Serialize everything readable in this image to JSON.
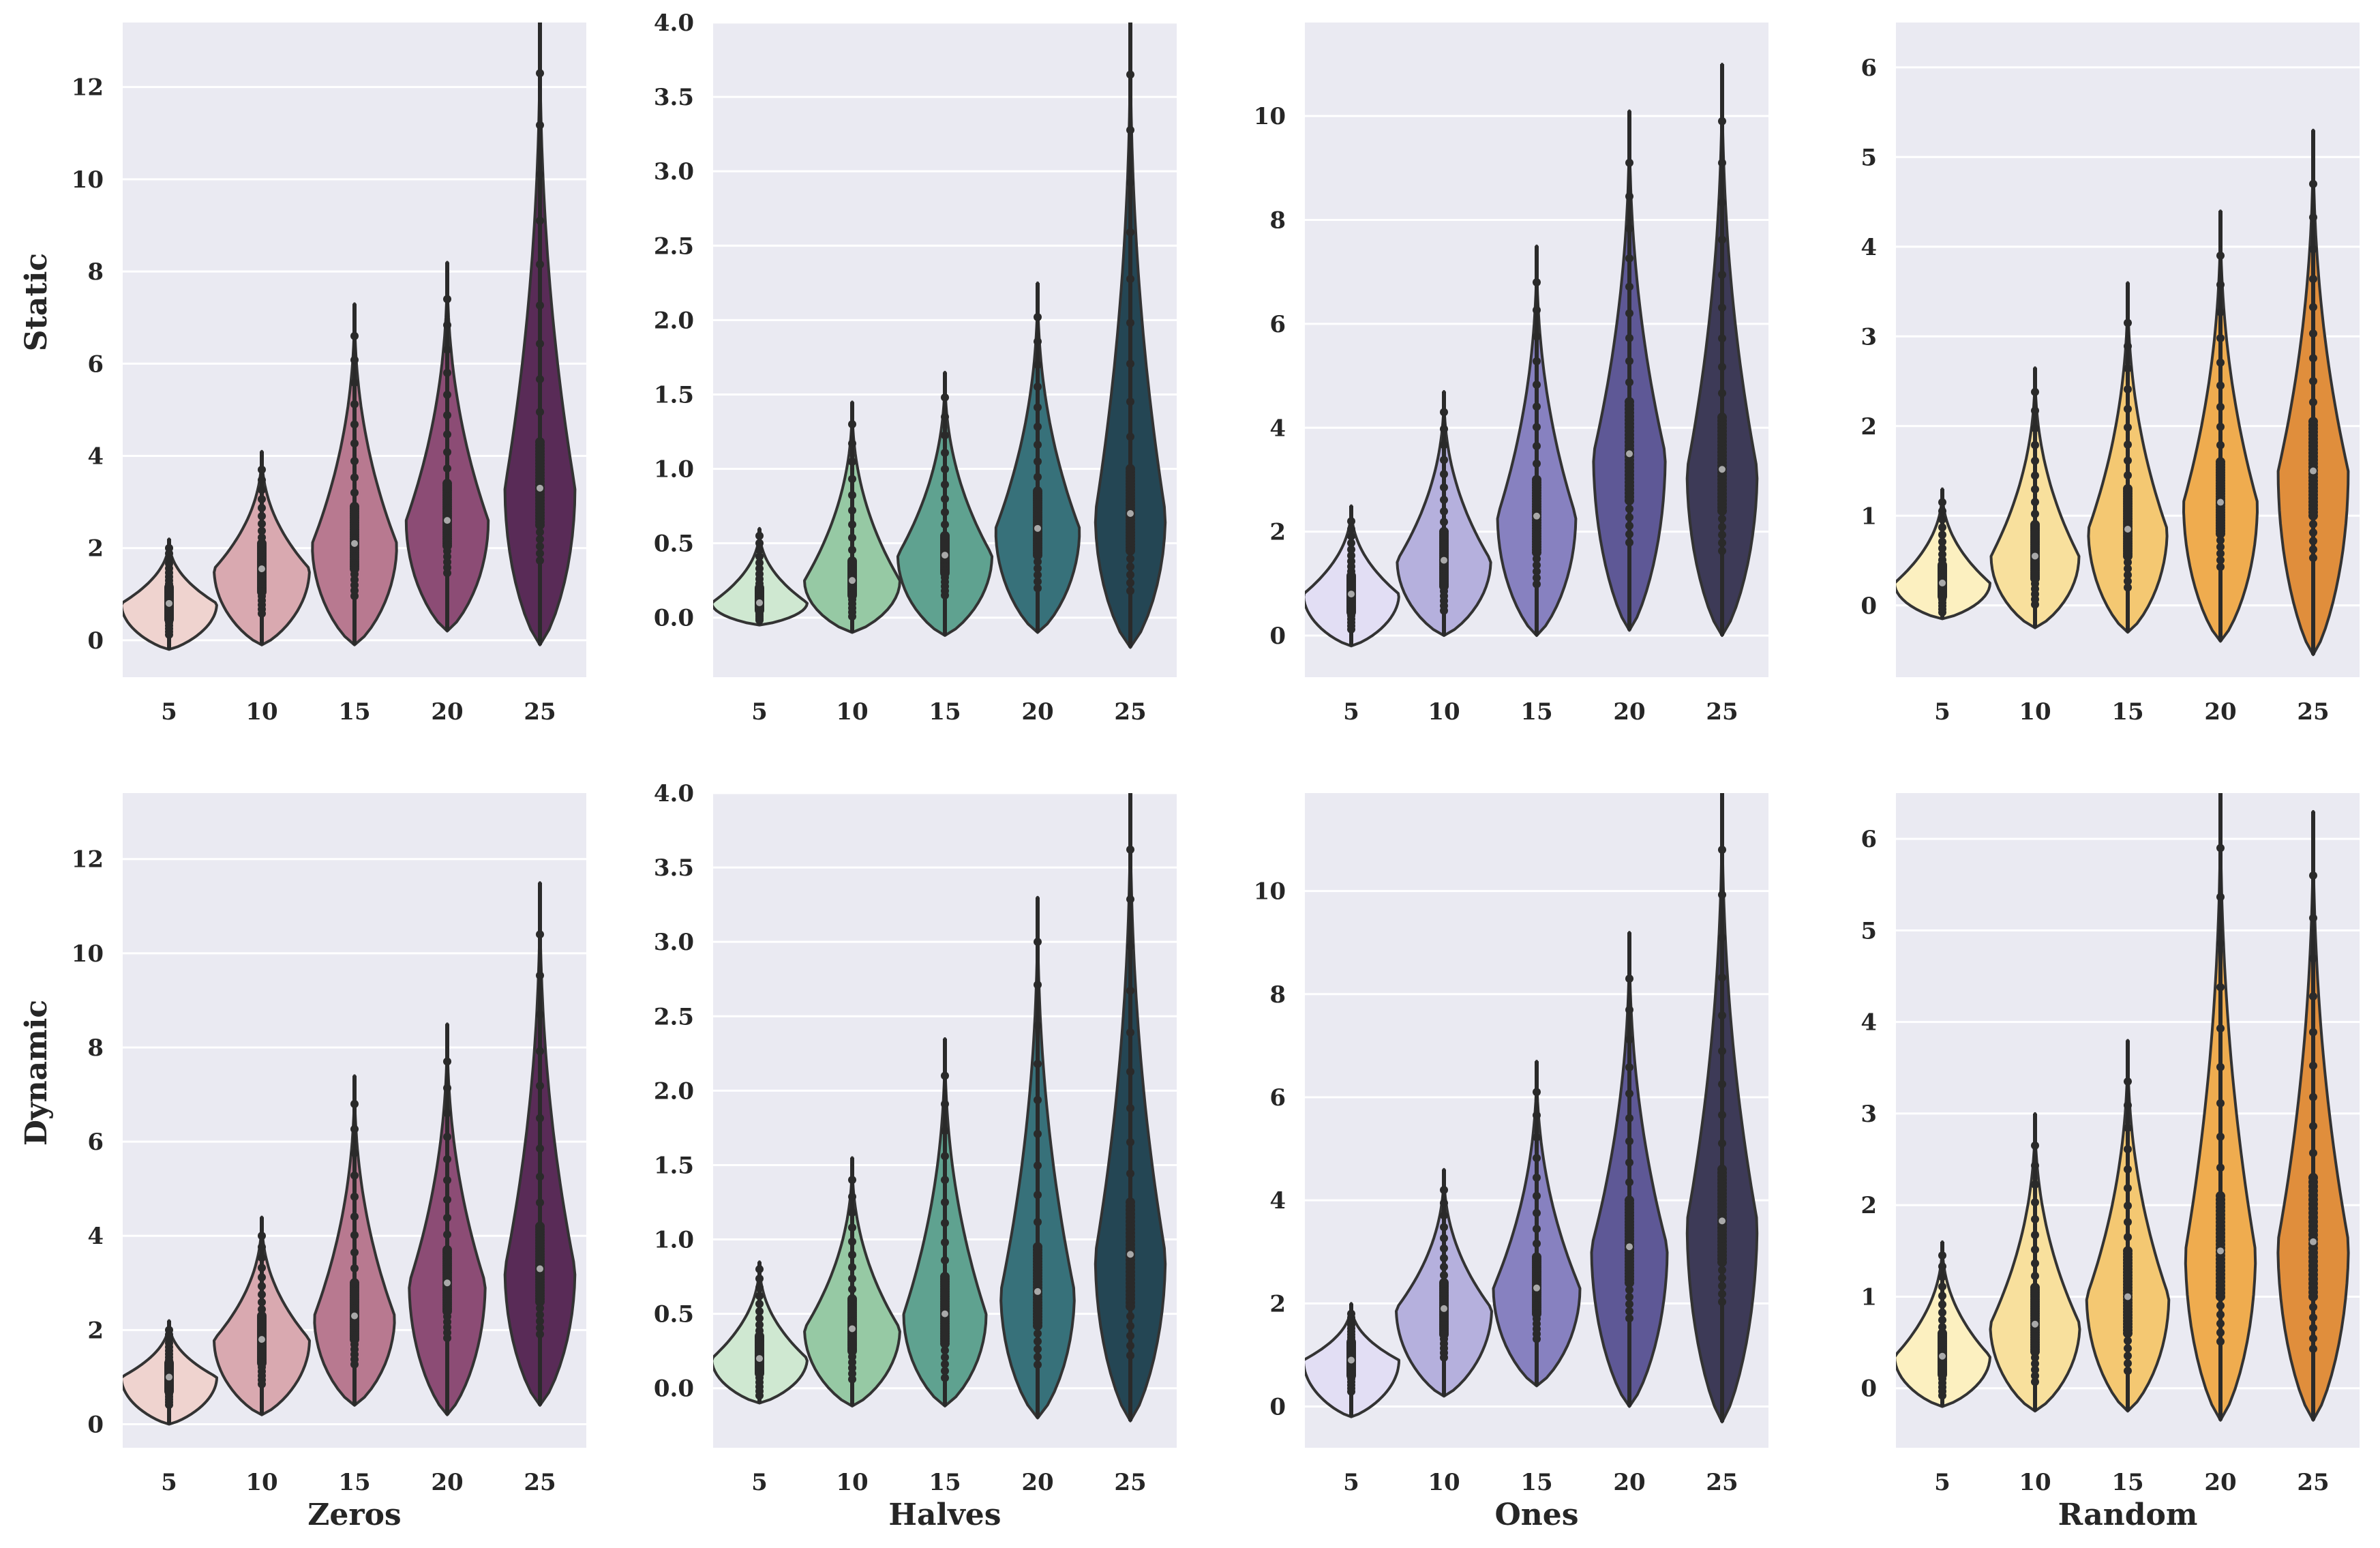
{
  "chart_data": {
    "type": "violin",
    "rows": [
      "Static",
      "Dynamic"
    ],
    "columns": [
      "Zeros",
      "Halves",
      "Ones",
      "Random"
    ],
    "categories": [
      "5",
      "10",
      "15",
      "20",
      "25"
    ],
    "grid": true,
    "panels": [
      {
        "row": "Static",
        "column": "Zeros",
        "ylim": [
          -0.8,
          13.4
        ],
        "yticks": [
          0,
          2,
          4,
          6,
          8,
          10,
          12
        ],
        "colors": [
          "#efd3cf",
          "#d9a9b0",
          "#b87990",
          "#8c4c75",
          "#592b57"
        ],
        "violins": [
          {
            "median": 0.8,
            "q1": 0.45,
            "q3": 1.15,
            "bottom": -0.2,
            "top": 2.2,
            "max_point": 2.0
          },
          {
            "median": 1.55,
            "q1": 1.05,
            "q3": 2.1,
            "bottom": -0.1,
            "top": 4.1,
            "max_point": 3.7
          },
          {
            "median": 2.1,
            "q1": 1.55,
            "q3": 2.9,
            "bottom": -0.1,
            "top": 7.3,
            "max_point": 6.6
          },
          {
            "median": 2.6,
            "q1": 2.05,
            "q3": 3.4,
            "bottom": 0.2,
            "top": 8.2,
            "max_point": 7.4
          },
          {
            "median": 3.3,
            "q1": 2.5,
            "q3": 4.3,
            "bottom": -0.1,
            "top": 13.4,
            "max_point": 12.3
          }
        ]
      },
      {
        "row": "Static",
        "column": "Halves",
        "ylim": [
          -0.4,
          4.0
        ],
        "yticks": [
          0.0,
          0.5,
          1.0,
          1.5,
          2.0,
          2.5,
          3.0,
          3.5,
          4.0
        ],
        "colors": [
          "#cfe8d1",
          "#96c9a4",
          "#5fa290",
          "#37717a",
          "#244654"
        ],
        "violins": [
          {
            "median": 0.1,
            "q1": 0.05,
            "q3": 0.2,
            "bottom": -0.05,
            "top": 0.6,
            "max_point": 0.55
          },
          {
            "median": 0.25,
            "q1": 0.15,
            "q3": 0.38,
            "bottom": -0.1,
            "top": 1.45,
            "max_point": 1.3
          },
          {
            "median": 0.42,
            "q1": 0.3,
            "q3": 0.55,
            "bottom": -0.12,
            "top": 1.65,
            "max_point": 1.48
          },
          {
            "median": 0.6,
            "q1": 0.42,
            "q3": 0.85,
            "bottom": -0.1,
            "top": 2.25,
            "max_point": 2.02
          },
          {
            "median": 0.7,
            "q1": 0.45,
            "q3": 1.0,
            "bottom": -0.2,
            "top": 4.0,
            "max_point": 3.65
          }
        ]
      },
      {
        "row": "Static",
        "column": "Ones",
        "ylim": [
          -0.8,
          11.8
        ],
        "yticks": [
          0,
          2,
          4,
          6,
          8,
          10
        ],
        "colors": [
          "#e2def4",
          "#b5b0dd",
          "#8781c0",
          "#5e5896",
          "#3d3a57"
        ],
        "violins": [
          {
            "median": 0.8,
            "q1": 0.45,
            "q3": 1.15,
            "bottom": -0.2,
            "top": 2.5,
            "max_point": 2.2
          },
          {
            "median": 1.45,
            "q1": 0.95,
            "q3": 2.0,
            "bottom": 0.0,
            "top": 4.7,
            "max_point": 4.3
          },
          {
            "median": 2.3,
            "q1": 1.6,
            "q3": 3.0,
            "bottom": 0.0,
            "top": 7.5,
            "max_point": 6.8
          },
          {
            "median": 3.5,
            "q1": 2.6,
            "q3": 4.5,
            "bottom": 0.1,
            "top": 10.1,
            "max_point": 9.1
          },
          {
            "median": 3.2,
            "q1": 2.4,
            "q3": 4.2,
            "bottom": 0.0,
            "top": 11.0,
            "max_point": 9.9
          }
        ]
      },
      {
        "row": "Static",
        "column": "Random",
        "ylim": [
          -0.8,
          6.5
        ],
        "yticks": [
          0,
          1,
          2,
          3,
          4,
          5,
          6
        ],
        "colors": [
          "#fcf0c0",
          "#f8e09d",
          "#f4c872",
          "#efac4f",
          "#e08e3c"
        ],
        "violins": [
          {
            "median": 0.25,
            "q1": 0.1,
            "q3": 0.45,
            "bottom": -0.15,
            "top": 1.3,
            "max_point": 1.15
          },
          {
            "median": 0.55,
            "q1": 0.3,
            "q3": 0.9,
            "bottom": -0.25,
            "top": 2.65,
            "max_point": 2.38
          },
          {
            "median": 0.85,
            "q1": 0.55,
            "q3": 1.3,
            "bottom": -0.3,
            "top": 3.6,
            "max_point": 3.15
          },
          {
            "median": 1.15,
            "q1": 0.8,
            "q3": 1.6,
            "bottom": -0.4,
            "top": 4.4,
            "max_point": 3.9
          },
          {
            "median": 1.5,
            "q1": 1.0,
            "q3": 2.05,
            "bottom": -0.55,
            "top": 5.3,
            "max_point": 4.7
          }
        ]
      },
      {
        "row": "Dynamic",
        "column": "Zeros",
        "ylim": [
          -0.5,
          13.4
        ],
        "yticks": [
          0,
          2,
          4,
          6,
          8,
          10,
          12
        ],
        "colors": [
          "#efd3cf",
          "#d9a9b0",
          "#b87990",
          "#8c4c75",
          "#592b57"
        ],
        "violins": [
          {
            "median": 1.0,
            "q1": 0.7,
            "q3": 1.3,
            "bottom": 0.0,
            "top": 2.2,
            "max_point": 2.0
          },
          {
            "median": 1.8,
            "q1": 1.3,
            "q3": 2.3,
            "bottom": 0.2,
            "top": 4.4,
            "max_point": 4.0
          },
          {
            "median": 2.3,
            "q1": 1.8,
            "q3": 3.0,
            "bottom": 0.4,
            "top": 7.4,
            "max_point": 6.8
          },
          {
            "median": 3.0,
            "q1": 2.4,
            "q3": 3.7,
            "bottom": 0.2,
            "top": 8.5,
            "max_point": 7.7
          },
          {
            "median": 3.3,
            "q1": 2.6,
            "q3": 4.2,
            "bottom": 0.4,
            "top": 11.5,
            "max_point": 10.4
          }
        ]
      },
      {
        "row": "Dynamic",
        "column": "Halves",
        "ylim": [
          -0.4,
          4.0
        ],
        "yticks": [
          0.0,
          0.5,
          1.0,
          1.5,
          2.0,
          2.5,
          3.0,
          3.5,
          4.0
        ],
        "colors": [
          "#cfe8d1",
          "#96c9a4",
          "#5fa290",
          "#37717a",
          "#244654"
        ],
        "violins": [
          {
            "median": 0.2,
            "q1": 0.1,
            "q3": 0.35,
            "bottom": -0.1,
            "top": 0.85,
            "max_point": 0.8
          },
          {
            "median": 0.4,
            "q1": 0.25,
            "q3": 0.6,
            "bottom": -0.12,
            "top": 1.55,
            "max_point": 1.4
          },
          {
            "median": 0.5,
            "q1": 0.3,
            "q3": 0.75,
            "bottom": -0.12,
            "top": 2.35,
            "max_point": 2.1
          },
          {
            "median": 0.65,
            "q1": 0.42,
            "q3": 0.95,
            "bottom": -0.2,
            "top": 3.3,
            "max_point": 3.0
          },
          {
            "median": 0.9,
            "q1": 0.55,
            "q3": 1.25,
            "bottom": -0.22,
            "top": 4.0,
            "max_point": 3.62
          }
        ]
      },
      {
        "row": "Dynamic",
        "column": "Ones",
        "ylim": [
          -0.8,
          11.9
        ],
        "yticks": [
          0,
          2,
          4,
          6,
          8,
          10
        ],
        "colors": [
          "#e2def4",
          "#b5b0dd",
          "#8781c0",
          "#5e5896",
          "#3d3a57"
        ],
        "violins": [
          {
            "median": 0.9,
            "q1": 0.6,
            "q3": 1.25,
            "bottom": -0.2,
            "top": 2.0,
            "max_point": 1.8
          },
          {
            "median": 1.9,
            "q1": 1.4,
            "q3": 2.4,
            "bottom": 0.2,
            "top": 4.6,
            "max_point": 4.2
          },
          {
            "median": 2.3,
            "q1": 1.8,
            "q3": 2.9,
            "bottom": 0.4,
            "top": 6.7,
            "max_point": 6.1
          },
          {
            "median": 3.1,
            "q1": 2.4,
            "q3": 4.0,
            "bottom": 0.0,
            "top": 9.2,
            "max_point": 8.3
          },
          {
            "median": 3.6,
            "q1": 2.8,
            "q3": 4.6,
            "bottom": -0.3,
            "top": 11.9,
            "max_point": 10.8
          }
        ]
      },
      {
        "row": "Dynamic",
        "column": "Random",
        "ylim": [
          -0.65,
          6.5
        ],
        "yticks": [
          0,
          1,
          2,
          3,
          4,
          5,
          6
        ],
        "colors": [
          "#fcf0c0",
          "#f8e09d",
          "#f4c872",
          "#efac4f",
          "#e08e3c"
        ],
        "violins": [
          {
            "median": 0.35,
            "q1": 0.15,
            "q3": 0.6,
            "bottom": -0.2,
            "top": 1.6,
            "max_point": 1.45
          },
          {
            "median": 0.7,
            "q1": 0.4,
            "q3": 1.1,
            "bottom": -0.25,
            "top": 3.0,
            "max_point": 2.65
          },
          {
            "median": 1.0,
            "q1": 0.6,
            "q3": 1.5,
            "bottom": -0.25,
            "top": 3.8,
            "max_point": 3.35
          },
          {
            "median": 1.5,
            "q1": 1.0,
            "q3": 2.1,
            "bottom": -0.35,
            "top": 6.5,
            "max_point": 5.9
          },
          {
            "median": 1.6,
            "q1": 1.0,
            "q3": 2.3,
            "bottom": -0.35,
            "top": 6.3,
            "max_point": 5.6
          }
        ]
      }
    ]
  }
}
